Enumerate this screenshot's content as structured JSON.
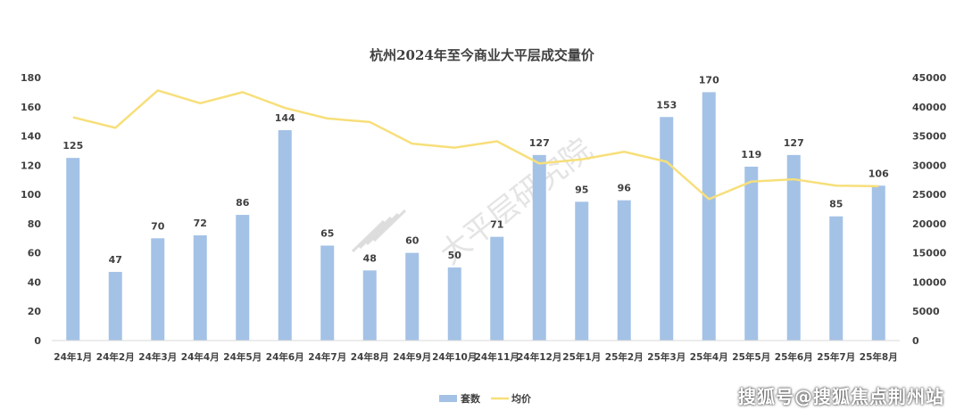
{
  "chart_data": {
    "type": "bar",
    "title": "杭州2024年至今商业大平层成交量价",
    "categories": [
      "24年1月",
      "24年2月",
      "24年3月",
      "24年4月",
      "24年5月",
      "24年6月",
      "24年7月",
      "24年8月",
      "24年9月",
      "24年10月",
      "24年11月",
      "24年12月",
      "25年1月",
      "25年2月",
      "25年3月",
      "25年4月",
      "25年5月",
      "25年6月",
      "25年7月",
      "25年8月"
    ],
    "series": [
      {
        "name": "套数",
        "type": "bar",
        "axis": "left",
        "color": "#a4c2e6",
        "values": [
          125,
          47,
          70,
          72,
          86,
          144,
          65,
          48,
          60,
          50,
          71,
          127,
          95,
          96,
          153,
          170,
          119,
          127,
          85,
          106
        ]
      },
      {
        "name": "均价",
        "type": "line",
        "axis": "right",
        "color": "#f7df7a",
        "values": [
          38200,
          36400,
          42800,
          40600,
          42500,
          39800,
          38000,
          37400,
          33700,
          33000,
          34100,
          30300,
          31000,
          32300,
          30600,
          24200,
          27200,
          27600,
          26500,
          26400
        ]
      }
    ],
    "left_axis": {
      "ylim": [
        0,
        180
      ],
      "ticks": [
        0,
        20,
        40,
        60,
        80,
        100,
        120,
        140,
        160,
        180
      ]
    },
    "right_axis": {
      "ylim": [
        0,
        45000
      ],
      "ticks": [
        0,
        5000,
        10000,
        15000,
        20000,
        25000,
        30000,
        35000,
        40000,
        45000
      ]
    },
    "legend": {
      "position": "bottom-center"
    },
    "grid": false,
    "watermark_text": "大平层研究院",
    "corner_watermark": "搜狐号@搜狐焦点荆州站"
  }
}
